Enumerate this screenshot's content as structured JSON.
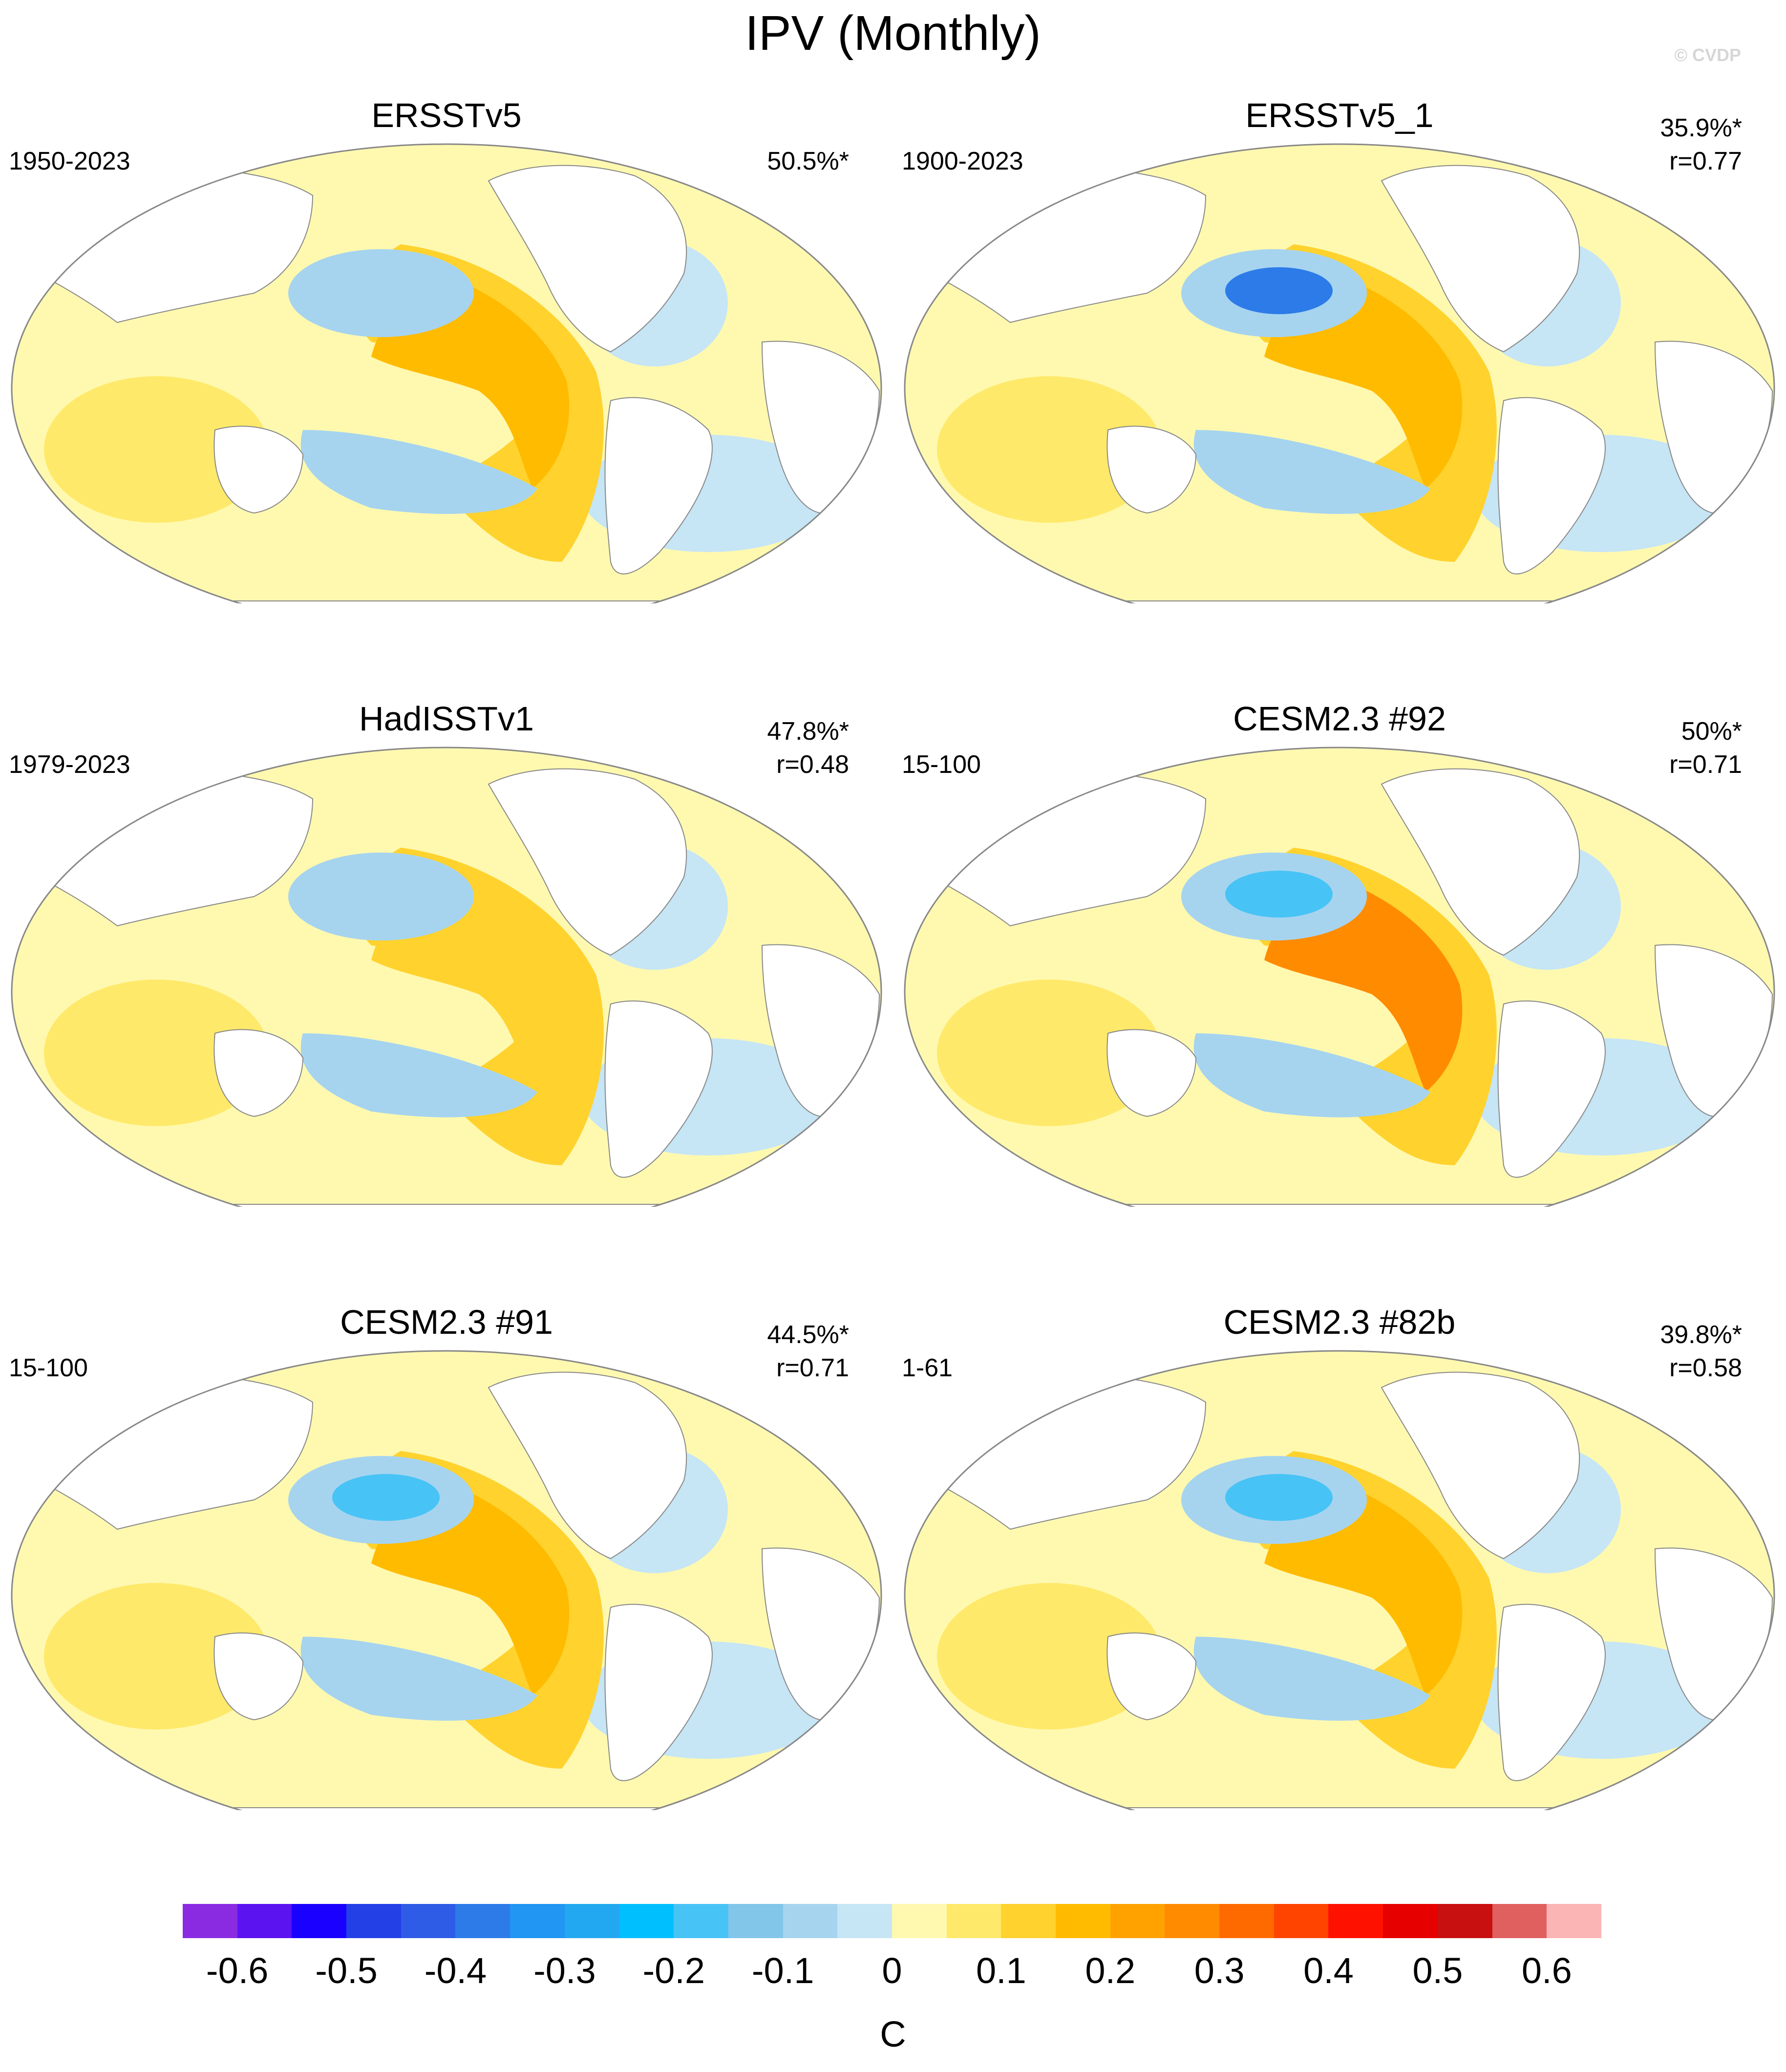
{
  "title": "IPV (Monthly)",
  "copyright": "© CVDP",
  "panels": [
    {
      "id": "ersstv5",
      "title": "ERSSTv5",
      "period": "1950-2023",
      "pct": "50.5%*",
      "r": "",
      "pacific_warm": 0.22,
      "pacific_cool": -0.15
    },
    {
      "id": "ersstv5-1",
      "title": "ERSSTv5_1",
      "period": "1900-2023",
      "pct": "35.9%*",
      "r": "r=0.77",
      "pacific_warm": 0.2,
      "pacific_cool": -0.3
    },
    {
      "id": "hadisstv1",
      "title": "HadISSTv1",
      "period": "1979-2023",
      "pct": "47.8%*",
      "r": "r=0.48",
      "pacific_warm": 0.18,
      "pacific_cool": -0.12
    },
    {
      "id": "cesm-92",
      "title": "CESM2.3 #92",
      "period": "15-100",
      "pct": "50%*",
      "r": "r=0.71",
      "pacific_warm": 0.3,
      "pacific_cool": -0.2
    },
    {
      "id": "cesm-91",
      "title": "CESM2.3 #91",
      "period": "15-100",
      "pct": "44.5%*",
      "r": "r=0.71",
      "pacific_warm": 0.25,
      "pacific_cool": -0.2
    },
    {
      "id": "cesm-82b",
      "title": "CESM2.3 #82b",
      "period": "1-61",
      "pct": "39.8%*",
      "r": "r=0.58",
      "pacific_warm": 0.22,
      "pacific_cool": -0.22
    }
  ],
  "colorbar": {
    "unit": "C",
    "colors": [
      "#8a2be2",
      "#5b13f0",
      "#1a00ff",
      "#2340e6",
      "#2f5ce6",
      "#2c7be8",
      "#2196f3",
      "#22a8f0",
      "#00bfff",
      "#48c3f5",
      "#82c6ea",
      "#a6d4ef",
      "#c6e5f5",
      "#fff9b0",
      "#ffe96a",
      "#ffd22e",
      "#ffbb00",
      "#ffa200",
      "#ff8b00",
      "#ff6a00",
      "#ff4400",
      "#ff1100",
      "#e60000",
      "#c81010",
      "#e06060",
      "#fbb5b5"
    ],
    "labels": [
      "-0.6",
      "-0.5",
      "-0.4",
      "-0.3",
      "-0.2",
      "-0.1",
      "0",
      "0.1",
      "0.2",
      "0.3",
      "0.4",
      "0.5",
      "0.6"
    ]
  },
  "map_colors": {
    "ocean_base": "#fff9b0",
    "ocean_light": "#ffe96a",
    "warm1": "#ffd22e",
    "warm2": "#ffbb00",
    "warm3": "#ff8b00",
    "cool1": "#c6e5f5",
    "cool2": "#a6d4ef",
    "cool3": "#48c3f5",
    "cool4": "#2c7be8",
    "land": "#ffffff",
    "outline": "#888888"
  }
}
